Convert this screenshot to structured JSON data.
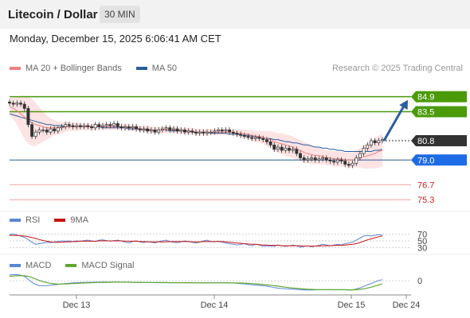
{
  "header": {
    "title": "Litecoin / Dollar",
    "timeframe": "30 MIN",
    "datetime": "Monday, December 15, 2025 6:06:41 AM CET"
  },
  "legend": {
    "ma20_label": "MA 20 + Bollinger Bands",
    "ma50_label": "MA 50",
    "credit": "Research © 2025 Trading Central",
    "rsi_label": "RSI",
    "rsi_ma_label": "9MA",
    "macd_label": "MACD",
    "macd_signal_label": "MACD Signal"
  },
  "colors": {
    "ma20": "#f08080",
    "ma50": "#2a5d9f",
    "band_fill": "#fde0e0",
    "resistance": "#4a9a0a",
    "support_blue": "#1e6be6",
    "pivot": "#333333",
    "support_red": "#d02020",
    "rsi": "#5b86d6",
    "rsi_ma": "#cc1111",
    "macd": "#5b86d6",
    "macd_signal": "#5fa830",
    "candle": "#333333",
    "arrow": "#2a5d9f"
  },
  "chart_data": [
    {
      "type": "candlestick",
      "title": "Litecoin / Dollar",
      "x_tick_labels": [
        "Dec 13",
        "Dec 14",
        "Dec 15",
        "Dec 24"
      ],
      "ylim": [
        74.5,
        86.5
      ],
      "levels": [
        {
          "value": 84.9,
          "label": "84.9",
          "kind": "resistance"
        },
        {
          "value": 83.5,
          "label": "83.5",
          "kind": "resistance"
        },
        {
          "value": 80.8,
          "label": "80.8",
          "kind": "pivot"
        },
        {
          "value": 79.0,
          "label": "79.0",
          "kind": "support"
        },
        {
          "value": 76.7,
          "label": "76.7",
          "kind": "support-minor"
        },
        {
          "value": 75.3,
          "label": "75.3",
          "kind": "support-minor"
        }
      ],
      "price_series": [
        84.3,
        84.2,
        84.3,
        84.2,
        83.8,
        82.3,
        81.2,
        81.6,
        81.8,
        81.8,
        81.6,
        81.9,
        81.7,
        82.0,
        82.1,
        82.3,
        82.2,
        82.1,
        82.2,
        82.1,
        82.2,
        82.1,
        82.0,
        82.3,
        82.1,
        82.2,
        82.3,
        82.2,
        82.4,
        82.1,
        82.0,
        82.1,
        82.0,
        82.1,
        81.9,
        81.8,
        81.9,
        81.7,
        81.8,
        81.6,
        81.8,
        81.9,
        82.0,
        81.8,
        81.9,
        81.7,
        81.8,
        81.6,
        81.7,
        81.6,
        81.5,
        81.6,
        81.5,
        81.6,
        81.6,
        81.7,
        81.8,
        81.7,
        81.8,
        81.6,
        81.5,
        81.4,
        81.3,
        81.2,
        81.1,
        81.0,
        81.1,
        81.0,
        80.9,
        80.7,
        80.4,
        80.0,
        80.2,
        79.9,
        80.1,
        79.9,
        80.0,
        79.6,
        79.2,
        79.0,
        79.1,
        79.2,
        79.0,
        79.1,
        79.2,
        79.0,
        78.9,
        78.8,
        79.0,
        78.9,
        78.6,
        78.5,
        78.7,
        79.2,
        79.6,
        80.1,
        80.4,
        80.8,
        80.6,
        80.8,
        80.9
      ],
      "ma20": [
        84.0,
        83.8,
        83.6,
        83.3,
        83.0,
        82.7,
        82.5,
        82.3,
        82.2,
        82.1,
        82.0,
        82.0,
        82.0,
        82.0,
        82.0,
        82.1,
        82.1,
        82.1,
        82.1,
        82.1,
        82.1,
        82.1,
        82.1,
        82.1,
        82.1,
        82.1,
        82.1,
        82.1,
        82.1,
        82.1,
        82.1,
        82.1,
        82.0,
        82.0,
        82.0,
        81.9,
        81.9,
        81.9,
        81.8,
        81.8,
        81.8,
        81.8,
        81.8,
        81.8,
        81.8,
        81.8,
        81.7,
        81.7,
        81.7,
        81.7,
        81.6,
        81.6,
        81.6,
        81.6,
        81.6,
        81.6,
        81.6,
        81.6,
        81.6,
        81.6,
        81.6,
        81.5,
        81.5,
        81.4,
        81.4,
        81.3,
        81.2,
        81.2,
        81.1,
        81.0,
        80.9,
        80.7,
        80.6,
        80.5,
        80.4,
        80.3,
        80.2,
        80.0,
        79.9,
        79.7,
        79.6,
        79.5,
        79.4,
        79.4,
        79.3,
        79.2,
        79.2,
        79.1,
        79.1,
        79.1,
        79.0,
        79.0,
        79.0,
        79.1,
        79.2,
        79.3,
        79.4,
        79.5,
        79.6,
        79.8,
        79.9
      ],
      "ma50": [
        83.3,
        83.2,
        83.1,
        83.0,
        82.9,
        82.8,
        82.7,
        82.6,
        82.5,
        82.4,
        82.3,
        82.3,
        82.2,
        82.2,
        82.2,
        82.1,
        82.1,
        82.1,
        82.1,
        82.1,
        82.1,
        82.1,
        82.1,
        82.1,
        82.1,
        82.0,
        82.0,
        82.0,
        82.0,
        82.0,
        82.0,
        82.0,
        81.9,
        81.9,
        81.9,
        81.9,
        81.8,
        81.8,
        81.8,
        81.8,
        81.8,
        81.8,
        81.8,
        81.7,
        81.7,
        81.7,
        81.7,
        81.7,
        81.7,
        81.6,
        81.6,
        81.6,
        81.6,
        81.6,
        81.5,
        81.5,
        81.5,
        81.5,
        81.5,
        81.4,
        81.4,
        81.4,
        81.3,
        81.3,
        81.3,
        81.2,
        81.2,
        81.1,
        81.1,
        81.0,
        81.0,
        80.9,
        80.9,
        80.8,
        80.7,
        80.7,
        80.6,
        80.6,
        80.5,
        80.4,
        80.4,
        80.3,
        80.2,
        80.2,
        80.1,
        80.1,
        80.0,
        80.0,
        79.9,
        79.9,
        79.8,
        79.8,
        79.8,
        79.8,
        79.8,
        79.8,
        79.8,
        79.8,
        79.9,
        79.9,
        80.0
      ],
      "bb_width": [
        0.8,
        1.0,
        1.3,
        1.7,
        2.0,
        2.2,
        2.2,
        2.0,
        1.7,
        1.4,
        1.1,
        0.9,
        0.7,
        0.6,
        0.5,
        0.5,
        0.4,
        0.4,
        0.4,
        0.3,
        0.3,
        0.3,
        0.3,
        0.3,
        0.3,
        0.3,
        0.3,
        0.3,
        0.3,
        0.3,
        0.3,
        0.3,
        0.3,
        0.3,
        0.3,
        0.3,
        0.3,
        0.3,
        0.3,
        0.3,
        0.3,
        0.3,
        0.3,
        0.3,
        0.3,
        0.3,
        0.3,
        0.3,
        0.3,
        0.3,
        0.3,
        0.3,
        0.3,
        0.3,
        0.3,
        0.3,
        0.3,
        0.3,
        0.3,
        0.3,
        0.3,
        0.3,
        0.4,
        0.4,
        0.4,
        0.5,
        0.5,
        0.5,
        0.6,
        0.7,
        0.8,
        0.9,
        0.9,
        1.0,
        1.0,
        1.0,
        1.0,
        1.0,
        1.0,
        1.0,
        0.9,
        0.9,
        0.8,
        0.8,
        0.7,
        0.7,
        0.7,
        0.7,
        0.7,
        0.7,
        0.7,
        0.7,
        0.7,
        0.8,
        0.9,
        1.1,
        1.2,
        1.3,
        1.4,
        1.5,
        1.5
      ],
      "forecast": {
        "from": 80.8,
        "to": 84.9
      }
    },
    {
      "type": "line",
      "title": "RSI",
      "y_tick_labels": [
        "70",
        "50",
        "30"
      ],
      "ylim": [
        20,
        80
      ],
      "series": [
        {
          "name": "RSI",
          "values": [
            68,
            70,
            67,
            64,
            60,
            54,
            46,
            40,
            42,
            44,
            46,
            45,
            47,
            48,
            50,
            49,
            50,
            48,
            50,
            49,
            51,
            52,
            50,
            48,
            52,
            53,
            51,
            49,
            51,
            52,
            50,
            46,
            44,
            48,
            50,
            47,
            45,
            48,
            46,
            44,
            48,
            50,
            52,
            48,
            46,
            45,
            47,
            50,
            48,
            46,
            44,
            46,
            50,
            52,
            48,
            47,
            49,
            46,
            44,
            42,
            40,
            38,
            40,
            42,
            38,
            36,
            40,
            38,
            34,
            36,
            35,
            34,
            38,
            36,
            34,
            36,
            38,
            36,
            32,
            34,
            36,
            33,
            35,
            37,
            40,
            38,
            36,
            38,
            40,
            38,
            42,
            44,
            46,
            52,
            58,
            64,
            66,
            64,
            66,
            68,
            67
          ]
        },
        {
          "name": "9MA",
          "values": [
            66,
            66,
            66,
            65,
            64,
            62,
            60,
            57,
            54,
            51,
            49,
            47,
            46,
            46,
            46,
            47,
            47,
            48,
            48,
            49,
            49,
            49,
            49,
            49,
            50,
            50,
            50,
            50,
            50,
            50,
            50,
            49,
            49,
            49,
            49,
            48,
            48,
            47,
            47,
            47,
            47,
            47,
            47,
            48,
            48,
            48,
            48,
            48,
            48,
            47,
            47,
            47,
            48,
            48,
            48,
            48,
            48,
            48,
            47,
            46,
            45,
            44,
            43,
            42,
            41,
            40,
            40,
            39,
            38,
            38,
            37,
            37,
            37,
            36,
            36,
            36,
            36,
            36,
            36,
            35,
            35,
            35,
            35,
            35,
            36,
            36,
            36,
            37,
            37,
            37,
            38,
            39,
            40,
            42,
            45,
            49,
            53,
            56,
            59,
            62,
            64
          ]
        }
      ]
    },
    {
      "type": "line",
      "title": "MACD",
      "y_tick_labels": [
        "0"
      ],
      "ylim": [
        -0.9,
        0.6
      ],
      "series": [
        {
          "name": "MACD",
          "values": [
            0.4,
            0.42,
            0.41,
            0.38,
            0.3,
            0.1,
            -0.1,
            -0.25,
            -0.32,
            -0.33,
            -0.32,
            -0.3,
            -0.27,
            -0.24,
            -0.21,
            -0.18,
            -0.16,
            -0.14,
            -0.13,
            -0.12,
            -0.11,
            -0.1,
            -0.1,
            -0.09,
            -0.09,
            -0.08,
            -0.08,
            -0.08,
            -0.08,
            -0.08,
            -0.09,
            -0.09,
            -0.1,
            -0.1,
            -0.11,
            -0.11,
            -0.12,
            -0.12,
            -0.12,
            -0.13,
            -0.13,
            -0.13,
            -0.13,
            -0.13,
            -0.13,
            -0.13,
            -0.13,
            -0.13,
            -0.14,
            -0.14,
            -0.14,
            -0.14,
            -0.14,
            -0.14,
            -0.14,
            -0.13,
            -0.13,
            -0.13,
            -0.13,
            -0.14,
            -0.15,
            -0.17,
            -0.19,
            -0.21,
            -0.24,
            -0.27,
            -0.29,
            -0.31,
            -0.33,
            -0.36,
            -0.4,
            -0.46,
            -0.5,
            -0.52,
            -0.54,
            -0.55,
            -0.56,
            -0.58,
            -0.6,
            -0.62,
            -0.62,
            -0.62,
            -0.61,
            -0.6,
            -0.6,
            -0.6,
            -0.6,
            -0.61,
            -0.6,
            -0.6,
            -0.61,
            -0.62,
            -0.61,
            -0.55,
            -0.48,
            -0.38,
            -0.28,
            -0.18,
            -0.08,
            0.02,
            0.08
          ]
        },
        {
          "name": "MACD Signal",
          "values": [
            0.3,
            0.32,
            0.34,
            0.35,
            0.34,
            0.3,
            0.22,
            0.12,
            0.02,
            -0.06,
            -0.12,
            -0.17,
            -0.2,
            -0.22,
            -0.22,
            -0.21,
            -0.2,
            -0.19,
            -0.17,
            -0.16,
            -0.15,
            -0.14,
            -0.13,
            -0.12,
            -0.11,
            -0.11,
            -0.1,
            -0.1,
            -0.09,
            -0.09,
            -0.09,
            -0.09,
            -0.09,
            -0.1,
            -0.1,
            -0.1,
            -0.11,
            -0.11,
            -0.11,
            -0.12,
            -0.12,
            -0.12,
            -0.12,
            -0.13,
            -0.13,
            -0.13,
            -0.13,
            -0.13,
            -0.13,
            -0.13,
            -0.14,
            -0.14,
            -0.14,
            -0.14,
            -0.14,
            -0.14,
            -0.14,
            -0.14,
            -0.14,
            -0.14,
            -0.14,
            -0.15,
            -0.15,
            -0.16,
            -0.17,
            -0.19,
            -0.21,
            -0.23,
            -0.25,
            -0.27,
            -0.3,
            -0.33,
            -0.36,
            -0.4,
            -0.43,
            -0.46,
            -0.49,
            -0.51,
            -0.53,
            -0.55,
            -0.57,
            -0.58,
            -0.59,
            -0.6,
            -0.6,
            -0.6,
            -0.6,
            -0.6,
            -0.6,
            -0.6,
            -0.6,
            -0.61,
            -0.61,
            -0.6,
            -0.58,
            -0.54,
            -0.49,
            -0.43,
            -0.36,
            -0.28,
            -0.21
          ]
        }
      ]
    }
  ]
}
